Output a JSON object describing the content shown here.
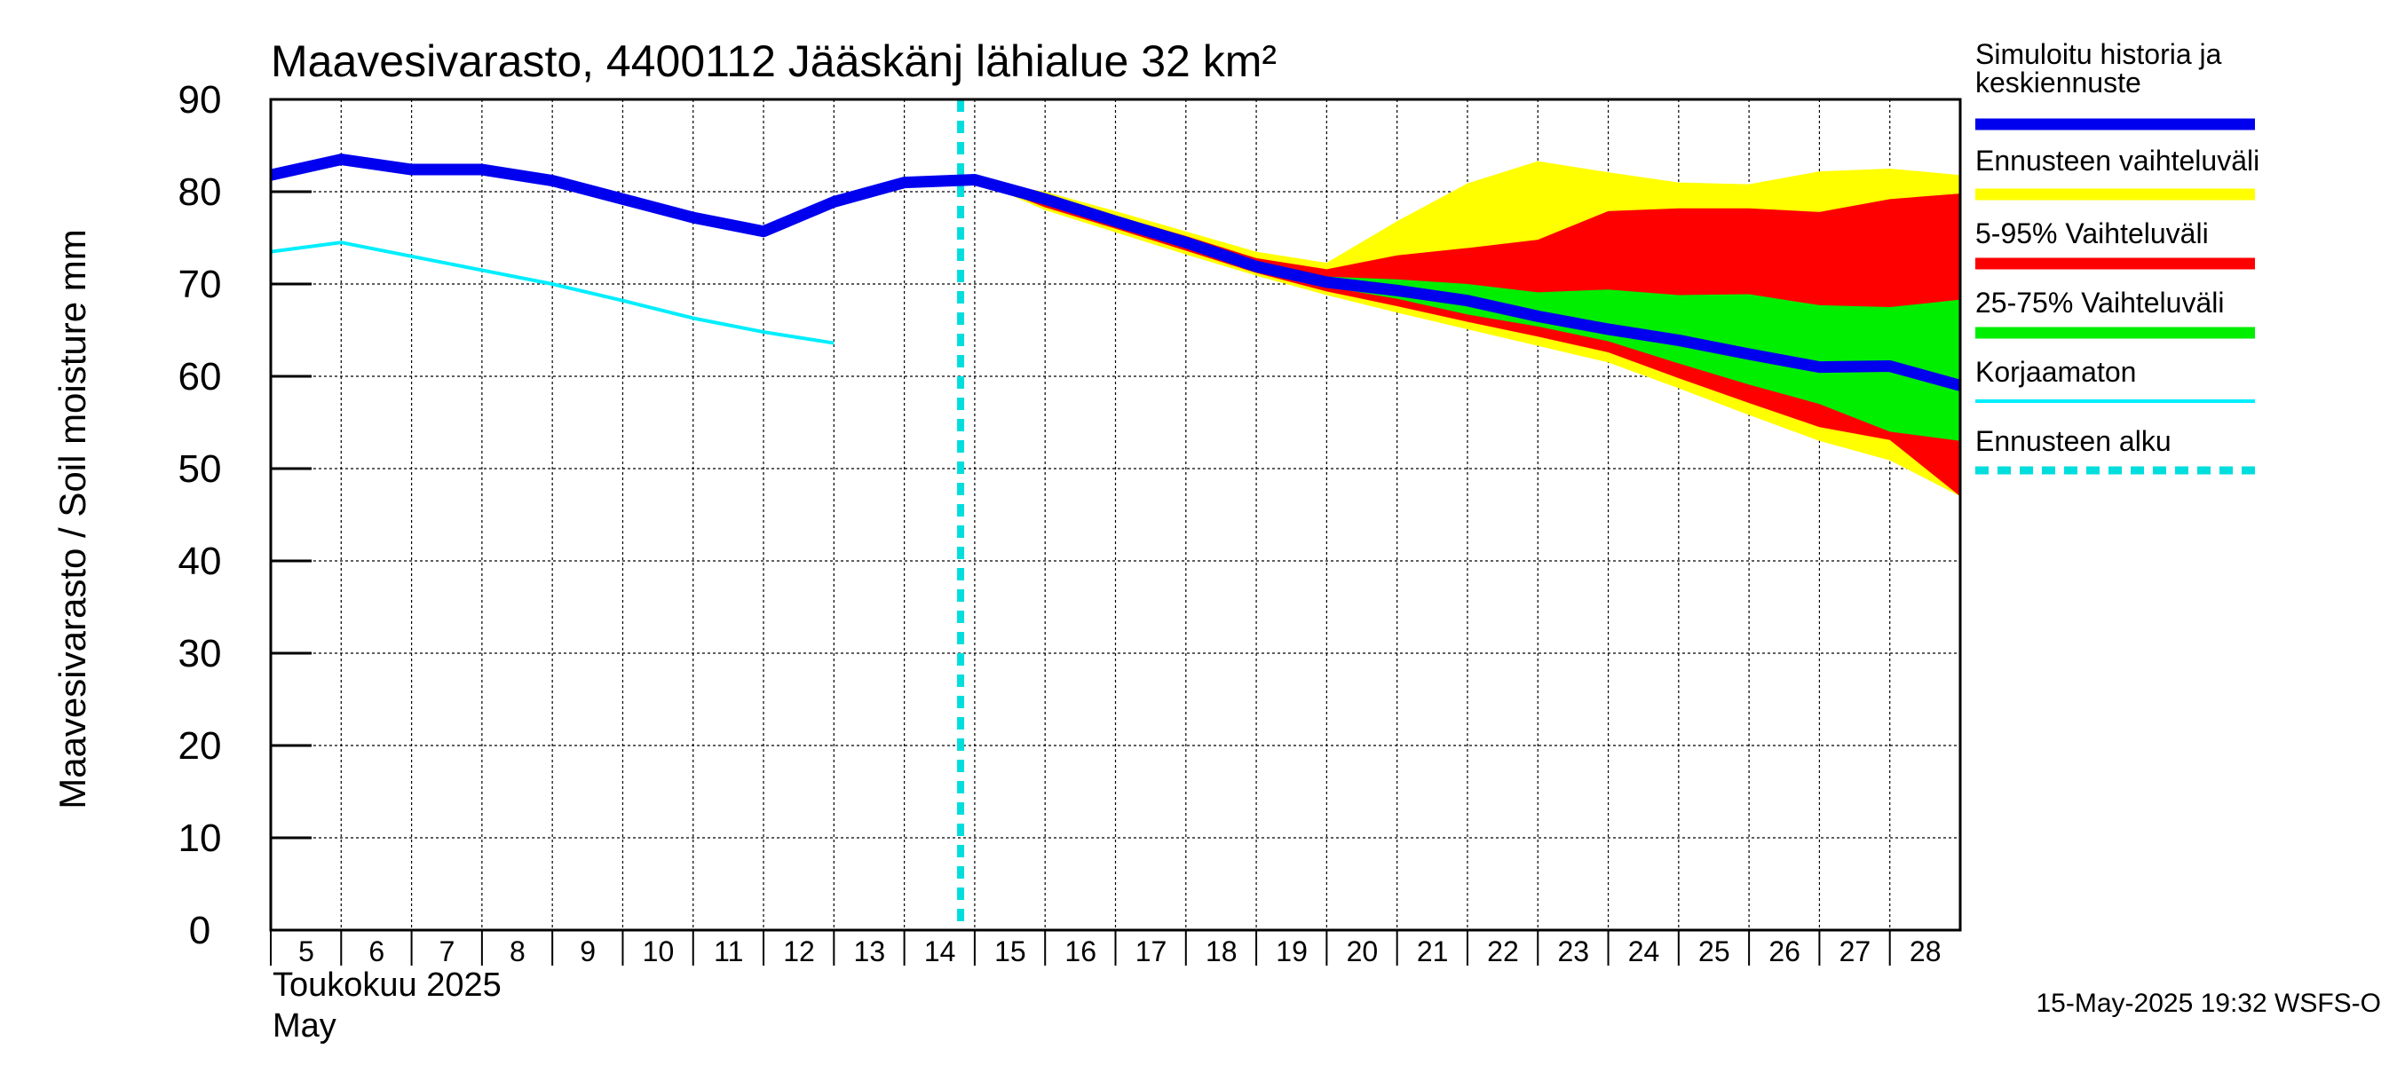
{
  "chart_data": {
    "type": "area",
    "title": "Maavesivarasto, 4400112 Jääskänj lähialue 32 km²",
    "ylabel": "Maavesivarasto / Soil moisture   mm",
    "xlabel_line1": "Toukokuu  2025",
    "xlabel_line2": "May",
    "ylim": [
      0,
      90
    ],
    "yticks": [
      "0",
      "10",
      "20",
      "30",
      "40",
      "50",
      "60",
      "70",
      "80",
      "90"
    ],
    "xlim": [
      5,
      29
    ],
    "xticks": [
      "5",
      "6",
      "7",
      "8",
      "9",
      "10",
      "11",
      "12",
      "13",
      "14",
      "15",
      "16",
      "17",
      "18",
      "19",
      "20",
      "21",
      "22",
      "23",
      "24",
      "25",
      "26",
      "27",
      "28"
    ],
    "grid": true,
    "legend_position": "right",
    "forecast_start": 14.8,
    "timestamp": "15-May-2025 19:32 WSFS-O",
    "colors": {
      "simulated": "#0000ee",
      "range": "#ffff00",
      "p5_95": "#ff0000",
      "p25_75": "#00ee00",
      "uncorrected": "#00eeff",
      "forecast_start": "#00dddd"
    },
    "legend": [
      {
        "label": "Simuloitu historia ja\nkeskiennuste",
        "key": "simulated",
        "style": "thick"
      },
      {
        "label": "Ennusteen vaihteluväli",
        "key": "range",
        "style": "thick"
      },
      {
        "label": "5-95% Vaihteluväli",
        "key": "p5_95",
        "style": "thick"
      },
      {
        "label": "25-75% Vaihteluväli",
        "key": "p25_75",
        "style": "thick"
      },
      {
        "label": "Korjaamaton",
        "key": "uncorrected",
        "style": "thin"
      },
      {
        "label": "Ennusteen alku",
        "key": "forecast_start",
        "style": "dashed"
      }
    ],
    "series": {
      "simulated": {
        "x": [
          5,
          6,
          7,
          8,
          9,
          10,
          11,
          12,
          13,
          14,
          15,
          16,
          17,
          18,
          19,
          20,
          21,
          22,
          23,
          24,
          25,
          26,
          27,
          28,
          29
        ],
        "y": [
          81.8,
          83.5,
          82.4,
          82.4,
          81.2,
          79.2,
          77.2,
          75.7,
          78.9,
          81.0,
          81.3,
          79.2,
          76.8,
          74.5,
          71.9,
          70.2,
          69.3,
          68.2,
          66.5,
          65.1,
          63.9,
          62.4,
          61.0,
          61.1,
          59.0
        ]
      },
      "uncorrected": {
        "x": [
          5,
          6,
          7,
          8,
          9,
          10,
          11,
          12,
          13
        ],
        "y": [
          73.5,
          74.5,
          73.0,
          71.5,
          70.0,
          68.2,
          66.3,
          64.8,
          63.6
        ]
      },
      "range": {
        "x": [
          15,
          16,
          17,
          18,
          19,
          20,
          21,
          22,
          23,
          24,
          25,
          26,
          27,
          28,
          29
        ],
        "upper": [
          81.3,
          80.0,
          77.9,
          75.7,
          73.5,
          72.3,
          76.8,
          80.9,
          83.3,
          82.1,
          81.0,
          80.8,
          82.2,
          82.5,
          81.8
        ],
        "lower": [
          81.3,
          78.0,
          75.6,
          73.2,
          70.9,
          68.8,
          66.9,
          65.1,
          63.3,
          61.5,
          58.7,
          55.8,
          53.0,
          50.9,
          47.0
        ]
      },
      "p5_95": {
        "x": [
          15,
          16,
          17,
          18,
          19,
          20,
          21,
          22,
          23,
          24,
          25,
          26,
          27,
          28,
          29
        ],
        "upper": [
          81.3,
          79.6,
          77.4,
          75.2,
          72.8,
          71.6,
          73.1,
          73.9,
          74.8,
          77.9,
          78.2,
          78.2,
          77.8,
          79.2,
          79.8
        ],
        "lower": [
          81.3,
          78.3,
          76.0,
          73.6,
          71.2,
          69.2,
          67.6,
          65.9,
          64.3,
          62.6,
          59.8,
          57.1,
          54.5,
          53.1,
          47.0
        ]
      },
      "p25_75": {
        "x": [
          15,
          16,
          17,
          18,
          19,
          20,
          21,
          22,
          23,
          24,
          25,
          26,
          27,
          28,
          29
        ],
        "upper": [
          81.3,
          79.3,
          77.0,
          74.8,
          72.3,
          70.8,
          70.5,
          70.0,
          69.1,
          69.4,
          68.8,
          68.9,
          67.7,
          67.5,
          68.3
        ],
        "lower": [
          81.3,
          78.8,
          76.5,
          74.1,
          71.6,
          69.7,
          68.4,
          66.7,
          65.4,
          63.8,
          61.4,
          59.1,
          57.0,
          54.0,
          53.0
        ]
      }
    }
  }
}
